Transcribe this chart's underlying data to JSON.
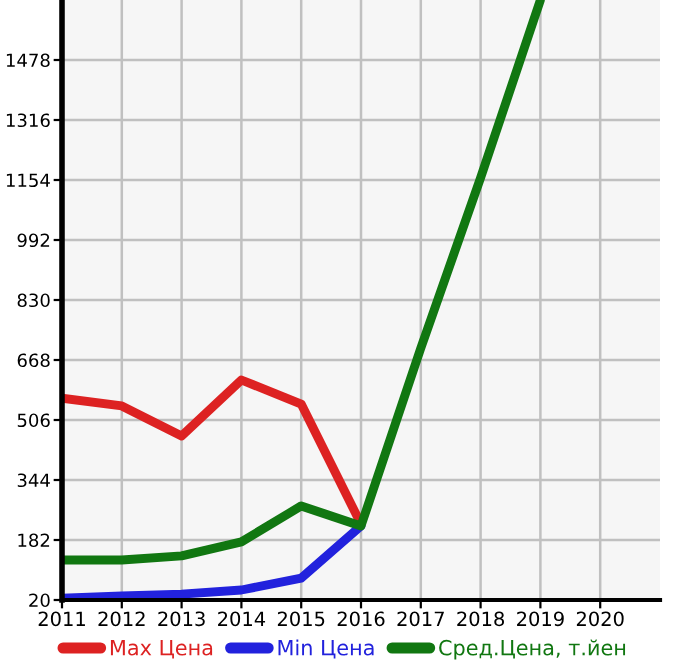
{
  "chart_data": {
    "type": "line",
    "x": [
      2011,
      2012,
      2013,
      2014,
      2015,
      2016,
      2017,
      2018,
      2019
    ],
    "series": [
      {
        "name": "Max Цена",
        "color": "#dd2222",
        "values": [
          565,
          544,
          463,
          614,
          549,
          225,
          null,
          null,
          null
        ]
      },
      {
        "name": "Min Цена",
        "color": "#2222dd",
        "values": [
          25,
          31,
          36,
          47,
          79,
          220,
          null,
          null,
          null
        ]
      },
      {
        "name": "Сред.Цена, т.йен",
        "color": "#117711",
        "values": [
          128,
          128,
          139,
          177,
          274,
          220,
          700,
          1160,
          1640
        ]
      }
    ],
    "xlim": [
      2011,
      2021
    ],
    "xticks": [
      2011,
      2012,
      2013,
      2014,
      2015,
      2016,
      2017,
      2018,
      2019,
      2020
    ],
    "ylim": [
      20,
      1640
    ],
    "yticks": [
      20,
      182,
      344,
      506,
      668,
      830,
      992,
      1154,
      1316,
      1478
    ],
    "grid": true,
    "legend": "bottom",
    "marker": "none",
    "line_style": "solid"
  }
}
